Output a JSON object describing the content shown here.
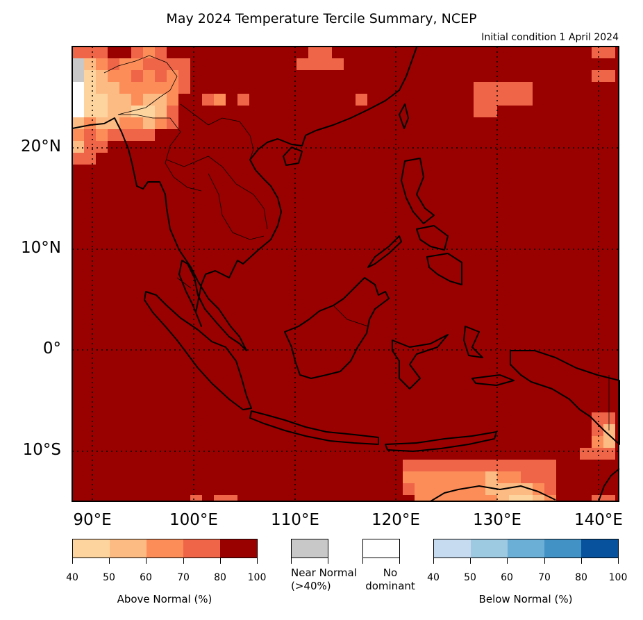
{
  "title": "May 2024 Temperature Tercile Summary, NCEP",
  "subtitle": "Initial condition 1 April 2024",
  "map": {
    "lon_range": [
      88,
      142
    ],
    "lat_range": [
      -15,
      30
    ],
    "background_color": "#990000",
    "lon_ticks": [
      "90°E",
      "100°E",
      "110°E",
      "120°E",
      "130°E",
      "140°E"
    ],
    "lat_ticks": [
      "20°N",
      "10°N",
      "0°",
      "10°S"
    ],
    "gridlines": "dotted"
  },
  "legend": {
    "above_normal": {
      "label": "Above Normal (%)",
      "ticks": [
        "40",
        "50",
        "60",
        "70",
        "80",
        "100"
      ],
      "colors": [
        "#fdd49e",
        "#fdbb84",
        "#fc8d59",
        "#ef6548",
        "#990000"
      ]
    },
    "near_normal": {
      "label_line1": "Near Normal",
      "label_line2": "(>40%)",
      "color": "#c8c8c8"
    },
    "no_dominant": {
      "label_line1": "No",
      "label_line2": "dominant",
      "color": "#ffffff"
    },
    "below_normal": {
      "label": "Below Normal (%)",
      "ticks": [
        "40",
        "50",
        "60",
        "70",
        "80",
        "100"
      ],
      "colors": [
        "#c6dbef",
        "#9ecae1",
        "#6baed6",
        "#4292c6",
        "#08519c"
      ]
    }
  }
}
